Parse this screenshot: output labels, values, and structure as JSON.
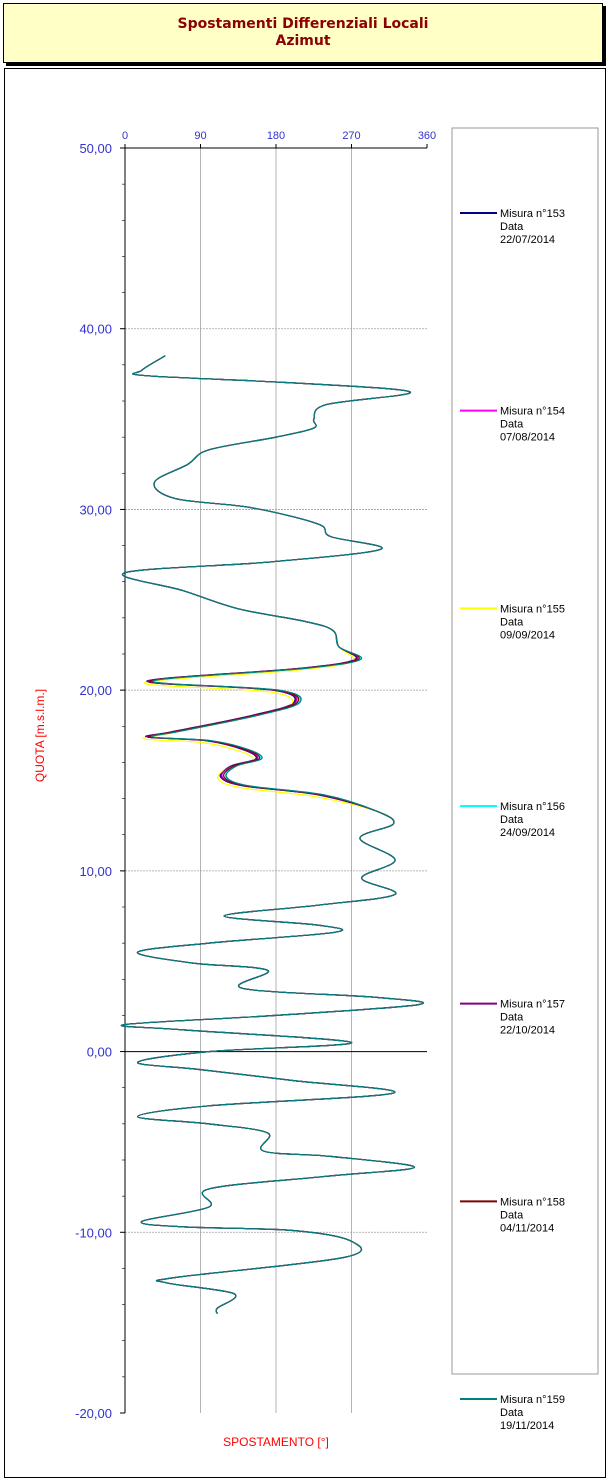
{
  "header": {
    "title_line1": "Spostamenti Differenziali Locali",
    "title_line2": "Azimut"
  },
  "chart_data": {
    "type": "line",
    "title": "Spostamenti Differenziali Locali Azimut",
    "xlabel": "SPOSTAMENTO [°]",
    "ylabel": "QUOTA [m.s.l.m.]",
    "xlim": [
      0,
      360
    ],
    "ylim": [
      -20,
      50
    ],
    "x_ticks": [
      "0",
      "90",
      "180",
      "270",
      "360"
    ],
    "y_ticks": [
      "50,00",
      "40,00",
      "30,00",
      "20,00",
      "10,00",
      "0,00",
      "-10,00",
      "-20,00"
    ],
    "grid": true,
    "legend_position": "right",
    "series": [
      {
        "name": "Misura n°153",
        "date_label": "Data",
        "date": "22/07/2014",
        "color": "#000080",
        "dx": -4,
        "dy": 0.0
      },
      {
        "name": "Misura n°154",
        "date_label": "Data",
        "date": "07/08/2014",
        "color": "#ff00ff",
        "dx": -2,
        "dy": 0.0
      },
      {
        "name": "Misura n°155",
        "date_label": "Data",
        "date": "09/09/2014",
        "color": "#ffff00",
        "dx": -7,
        "dy": -0.1
      },
      {
        "name": "Misura n°156",
        "date_label": "Data",
        "date": "24/09/2014",
        "color": "#00ffff",
        "dx": 2,
        "dy": 0.0
      },
      {
        "name": "Misura n°157",
        "date_label": "Data",
        "date": "22/10/2014",
        "color": "#800080",
        "dx": -3,
        "dy": 0.0
      },
      {
        "name": "Misura n°158",
        "date_label": "Data",
        "date": "04/11/2014",
        "color": "#800000",
        "dx": 0,
        "dy": 0.0
      },
      {
        "name": "Misura n°159",
        "date_label": "Data",
        "date": "19/11/2014",
        "color": "#008080",
        "dx": 3,
        "dy": 0.0
      }
    ],
    "profile": [
      [
        48,
        38.5
      ],
      [
        20,
        37.7
      ],
      [
        25,
        37.4
      ],
      [
        200,
        37.0
      ],
      [
        340,
        36.5
      ],
      [
        240,
        35.8
      ],
      [
        225,
        35.0
      ],
      [
        225,
        34.5
      ],
      [
        180,
        34.0
      ],
      [
        100,
        33.3
      ],
      [
        75,
        32.5
      ],
      [
        35,
        31.5
      ],
      [
        60,
        30.6
      ],
      [
        150,
        30.1
      ],
      [
        230,
        29.2
      ],
      [
        245,
        28.5
      ],
      [
        305,
        27.8
      ],
      [
        175,
        27.1
      ],
      [
        0,
        26.5
      ],
      [
        70,
        25.5
      ],
      [
        135,
        24.5
      ],
      [
        215,
        23.8
      ],
      [
        248,
        23.3
      ],
      [
        255,
        22.4
      ],
      [
        278,
        21.7
      ],
      [
        210,
        21.2
      ],
      [
        30,
        20.5
      ],
      [
        180,
        20.0
      ],
      [
        205,
        19.3
      ],
      [
        155,
        18.6
      ],
      [
        60,
        17.7
      ],
      [
        30,
        17.4
      ],
      [
        100,
        17.2
      ],
      [
        145,
        16.7
      ],
      [
        160,
        16.2
      ],
      [
        130,
        15.8
      ],
      [
        118,
        15.2
      ],
      [
        145,
        14.7
      ],
      [
        235,
        14.2
      ],
      [
        300,
        13.3
      ],
      [
        320,
        12.6
      ],
      [
        280,
        11.8
      ],
      [
        322,
        10.6
      ],
      [
        282,
        9.6
      ],
      [
        322,
        8.7
      ],
      [
        230,
        8.1
      ],
      [
        118,
        7.5
      ],
      [
        230,
        7.0
      ],
      [
        250,
        6.6
      ],
      [
        100,
        6.0
      ],
      [
        15,
        5.5
      ],
      [
        80,
        4.9
      ],
      [
        170,
        4.5
      ],
      [
        140,
        3.5
      ],
      [
        300,
        3.0
      ],
      [
        350,
        2.6
      ],
      [
        180,
        2.0
      ],
      [
        0,
        1.5
      ],
      [
        70,
        1.2
      ],
      [
        270,
        0.5
      ],
      [
        100,
        0.0
      ],
      [
        15,
        -0.6
      ],
      [
        90,
        -1.0
      ],
      [
        200,
        -1.6
      ],
      [
        320,
        -2.3
      ],
      [
        100,
        -3.0
      ],
      [
        15,
        -3.6
      ],
      [
        100,
        -4.0
      ],
      [
        170,
        -4.5
      ],
      [
        165,
        -5.5
      ],
      [
        245,
        -5.8
      ],
      [
        345,
        -6.4
      ],
      [
        240,
        -6.9
      ],
      [
        100,
        -7.6
      ],
      [
        100,
        -8.6
      ],
      [
        20,
        -9.4
      ],
      [
        70,
        -9.7
      ],
      [
        200,
        -9.9
      ],
      [
        270,
        -10.5
      ],
      [
        260,
        -11.4
      ],
      [
        60,
        -12.5
      ],
      [
        50,
        -12.8
      ],
      [
        130,
        -13.4
      ],
      [
        110,
        -14.2
      ],
      [
        110,
        -14.5
      ]
    ]
  }
}
